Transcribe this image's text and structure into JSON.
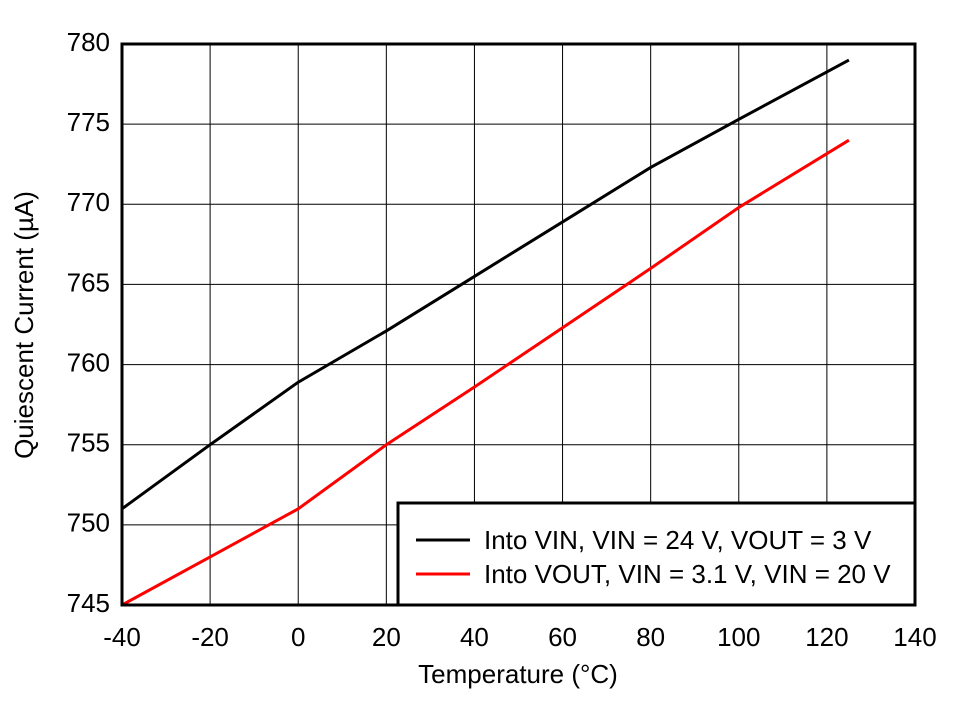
{
  "chart_data": {
    "type": "line",
    "x_label": "Temperature (°C)",
    "y_label": "Quiescent Current (µA)",
    "x": [
      -40,
      -20,
      0,
      20,
      40,
      60,
      80,
      100,
      125
    ],
    "series": [
      {
        "name": "Into VIN, VIN = 24 V, VOUT = 3 V",
        "color": "#000000",
        "values": [
          751,
          755,
          758.9,
          762.1,
          765.5,
          768.9,
          772.3,
          775.3,
          779
        ]
      },
      {
        "name": "Into VOUT, VIN = 3.1 V, VIN = 20 V",
        "color": "#ff0000",
        "values": [
          745,
          748,
          751,
          755,
          758.6,
          762.3,
          766,
          769.8,
          774
        ]
      }
    ],
    "xlim": [
      -40,
      140
    ],
    "xticks": [
      -40,
      -20,
      0,
      20,
      40,
      60,
      80,
      100,
      120,
      140
    ],
    "ylim": [
      745,
      780
    ],
    "yticks": [
      745,
      750,
      755,
      760,
      765,
      770,
      775,
      780
    ],
    "grid": true,
    "legend": "lower right"
  }
}
